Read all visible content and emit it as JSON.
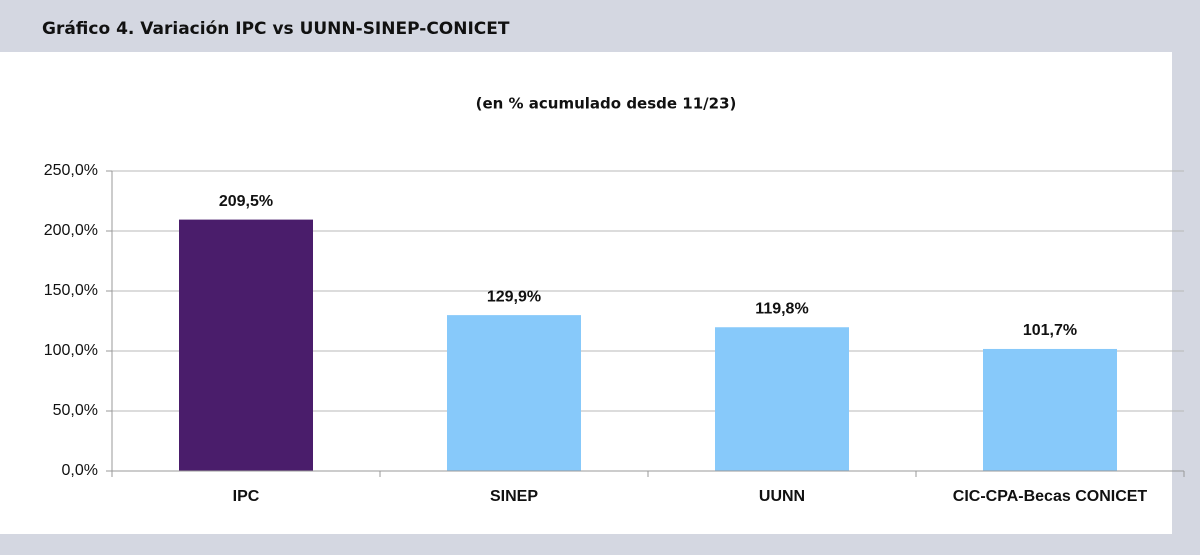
{
  "chart_data": {
    "type": "bar",
    "title": "Gráfico 4. Variación IPC vs UUNN-SINEP-CONICET",
    "subtitle": "(en % acumulado desde 11/23)",
    "categories": [
      "IPC",
      "SINEP",
      "UUNN",
      "CIC-CPA-Becas CONICET"
    ],
    "values": [
      209.5,
      129.9,
      119.8,
      101.7
    ],
    "value_labels": [
      "209,5%",
      "129,9%",
      "119,8%",
      "101,7%"
    ],
    "colors": [
      "#4a1d6b",
      "#87c9fa",
      "#87c9fa",
      "#87c9fa"
    ],
    "ylim": [
      0,
      250
    ],
    "yticks": [
      {
        "value": 0,
        "label": "0,0%"
      },
      {
        "value": 50,
        "label": "50,0%"
      },
      {
        "value": 100,
        "label": "100,0%"
      },
      {
        "value": 150,
        "label": "150,0%"
      },
      {
        "value": 200,
        "label": "200,0%"
      },
      {
        "value": 250,
        "label": "250,0%"
      }
    ],
    "grid": true
  }
}
